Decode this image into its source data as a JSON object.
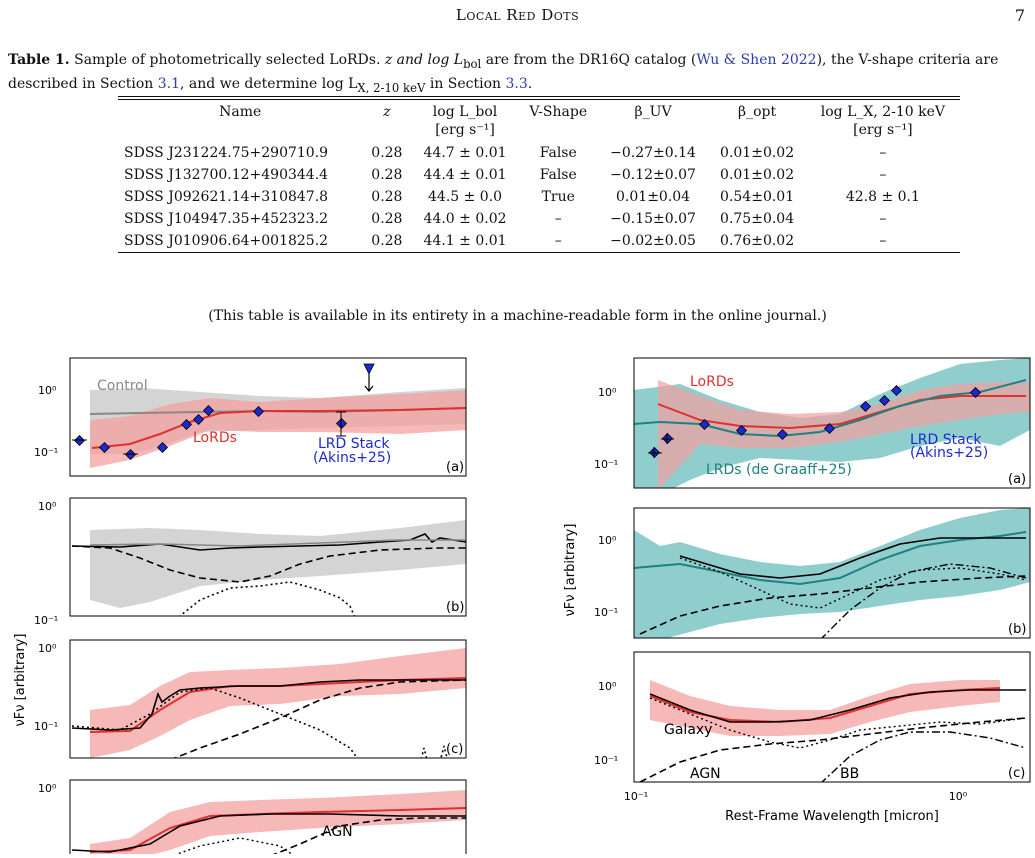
{
  "header": {
    "running_title": "Local Red Dots",
    "page_number": "7"
  },
  "caption": {
    "label": "Table 1.",
    "text_a": "Sample of photometrically selected LoRDs.",
    "text_b": "z and log L",
    "text_b_sub": "bol",
    "text_c": "are from the DR16Q catalog (",
    "cite1": "Wu & Shen 2022",
    "text_d": "), the V-shape criteria are described in Section",
    "sec1": "3.1",
    "text_e": ", and we determine log L",
    "text_e_sub": "X, 2-10 keV",
    "text_f": "in Section",
    "sec2": "3.3",
    "text_g": "."
  },
  "table": {
    "headers": [
      "Name",
      "z",
      "log L_bol",
      "V-Shape",
      "β_UV",
      "β_opt",
      "log L_X, 2-10 keV"
    ],
    "units": [
      "",
      "",
      "[erg s⁻¹]",
      "",
      "",
      "",
      "[erg s⁻¹]"
    ],
    "rows": [
      [
        "SDSS J231224.75+290710.9",
        "0.28",
        "44.7 ± 0.01",
        "False",
        "−0.27±0.14",
        "0.01±0.02",
        "–"
      ],
      [
        "SDSS J132700.12+490344.4",
        "0.28",
        "44.4 ± 0.01",
        "False",
        "−0.12±0.07",
        "0.01±0.02",
        "–"
      ],
      [
        "SDSS J092621.14+310847.8",
        "0.28",
        "44.5 ± 0.0",
        "True",
        "0.01±0.04",
        "0.54±0.01",
        "42.8 ± 0.1"
      ],
      [
        "SDSS J104947.35+452323.2",
        "0.28",
        "44.0 ± 0.02",
        "–",
        "−0.15±0.07",
        "0.75±0.04",
        "–"
      ],
      [
        "SDSS J010906.64+001825.2",
        "0.28",
        "44.1 ± 0.01",
        "–",
        "−0.02±0.05",
        "0.76±0.02",
        "–"
      ]
    ]
  },
  "availability_note": "(This table is available in its entirety in a machine-readable form in the online journal.)",
  "figure": {
    "left": {
      "ylabel": "νFν [arbitrary]",
      "panels": [
        {
          "tag": "(a)",
          "ticks": [
            "10⁰",
            "10⁻¹"
          ],
          "labels": [
            "Control",
            "LoRDs",
            "LRD Stack",
            "(Akins+25)"
          ]
        },
        {
          "tag": "(b)",
          "ticks": [
            "10⁰",
            "10⁻¹"
          ]
        },
        {
          "tag": "(c)",
          "ticks": [
            "10⁰",
            "10⁻¹"
          ]
        },
        {
          "tag": "",
          "ticks": [
            "10⁰"
          ],
          "labels": [
            "AGN"
          ]
        }
      ]
    },
    "right": {
      "ylabel": "νFν [arbitrary]",
      "xlabel": "Rest-Frame Wavelength [micron]",
      "xticks": [
        "10⁻¹",
        "10⁰"
      ],
      "panels": [
        {
          "tag": "(a)",
          "ticks": [
            "10⁰",
            "10⁻¹"
          ],
          "labels": [
            "LoRDs",
            "LRD Stack",
            "(Akins+25)",
            "LRDs (de Graaff+25)"
          ]
        },
        {
          "tag": "(b)",
          "ticks": [
            "10⁰",
            "10⁻¹"
          ]
        },
        {
          "tag": "(c)",
          "ticks": [
            "10⁰",
            "10⁻¹"
          ],
          "labels": [
            "Galaxy",
            "AGN",
            "BB"
          ]
        }
      ]
    },
    "colors": {
      "red": "#e03030",
      "redfill": "#f4a0a0",
      "teal": "#2a9b9b",
      "tealfill": "#7cc6c4",
      "gray": "#888888",
      "grayfill": "#d4d4d4",
      "blue": "#1a2ad0"
    }
  },
  "chart_data": [
    {
      "type": "line",
      "title": "",
      "panel": "left (a)",
      "xlabel": "",
      "ylabel": "νFν [arbitrary]",
      "series": [
        {
          "name": "Control",
          "x": [
            0.11,
            0.15,
            0.2,
            0.3,
            0.5,
            1.0,
            1.5
          ],
          "values": [
            0.42,
            0.43,
            0.45,
            0.46,
            0.47,
            0.5,
            0.52
          ]
        },
        {
          "name": "LoRDs",
          "x": [
            0.12,
            0.15,
            0.2,
            0.3,
            0.5,
            1.0,
            1.5
          ],
          "values": [
            0.14,
            0.16,
            0.3,
            0.45,
            0.47,
            0.5,
            0.53
          ]
        },
        {
          "name": "LRD Stack (Akins+25)",
          "x": [
            0.11,
            0.12,
            0.14,
            0.16,
            0.18,
            0.19,
            0.2,
            0.3,
            0.5,
            0.8
          ],
          "values": [
            0.18,
            0.15,
            0.12,
            0.15,
            0.3,
            0.38,
            0.5,
            0.48,
            0.32,
            2.0
          ]
        }
      ]
    },
    {
      "type": "line",
      "title": "",
      "panel": "right (a)",
      "xlabel": "",
      "ylabel": "νFν [arbitrary]",
      "series": [
        {
          "name": "LoRDs",
          "x": [
            0.12,
            0.15,
            0.2,
            0.3,
            0.5,
            1.0,
            1.3
          ],
          "values": [
            0.6,
            0.4,
            0.32,
            0.3,
            0.45,
            0.8,
            0.85
          ]
        },
        {
          "name": "LRDs (de Graaff+25)",
          "x": [
            0.1,
            0.15,
            0.2,
            0.3,
            0.5,
            1.0,
            1.4
          ],
          "values": [
            0.35,
            0.32,
            0.25,
            0.25,
            0.5,
            0.9,
            1.3
          ]
        },
        {
          "name": "LRD Stack (Akins+25)",
          "x": [
            0.11,
            0.12,
            0.16,
            0.22,
            0.28,
            0.4,
            0.55,
            0.65,
            0.72,
            1.1
          ],
          "values": [
            0.13,
            0.22,
            0.35,
            0.28,
            0.23,
            0.28,
            0.55,
            0.72,
            1.0,
            0.95
          ]
        }
      ]
    }
  ]
}
